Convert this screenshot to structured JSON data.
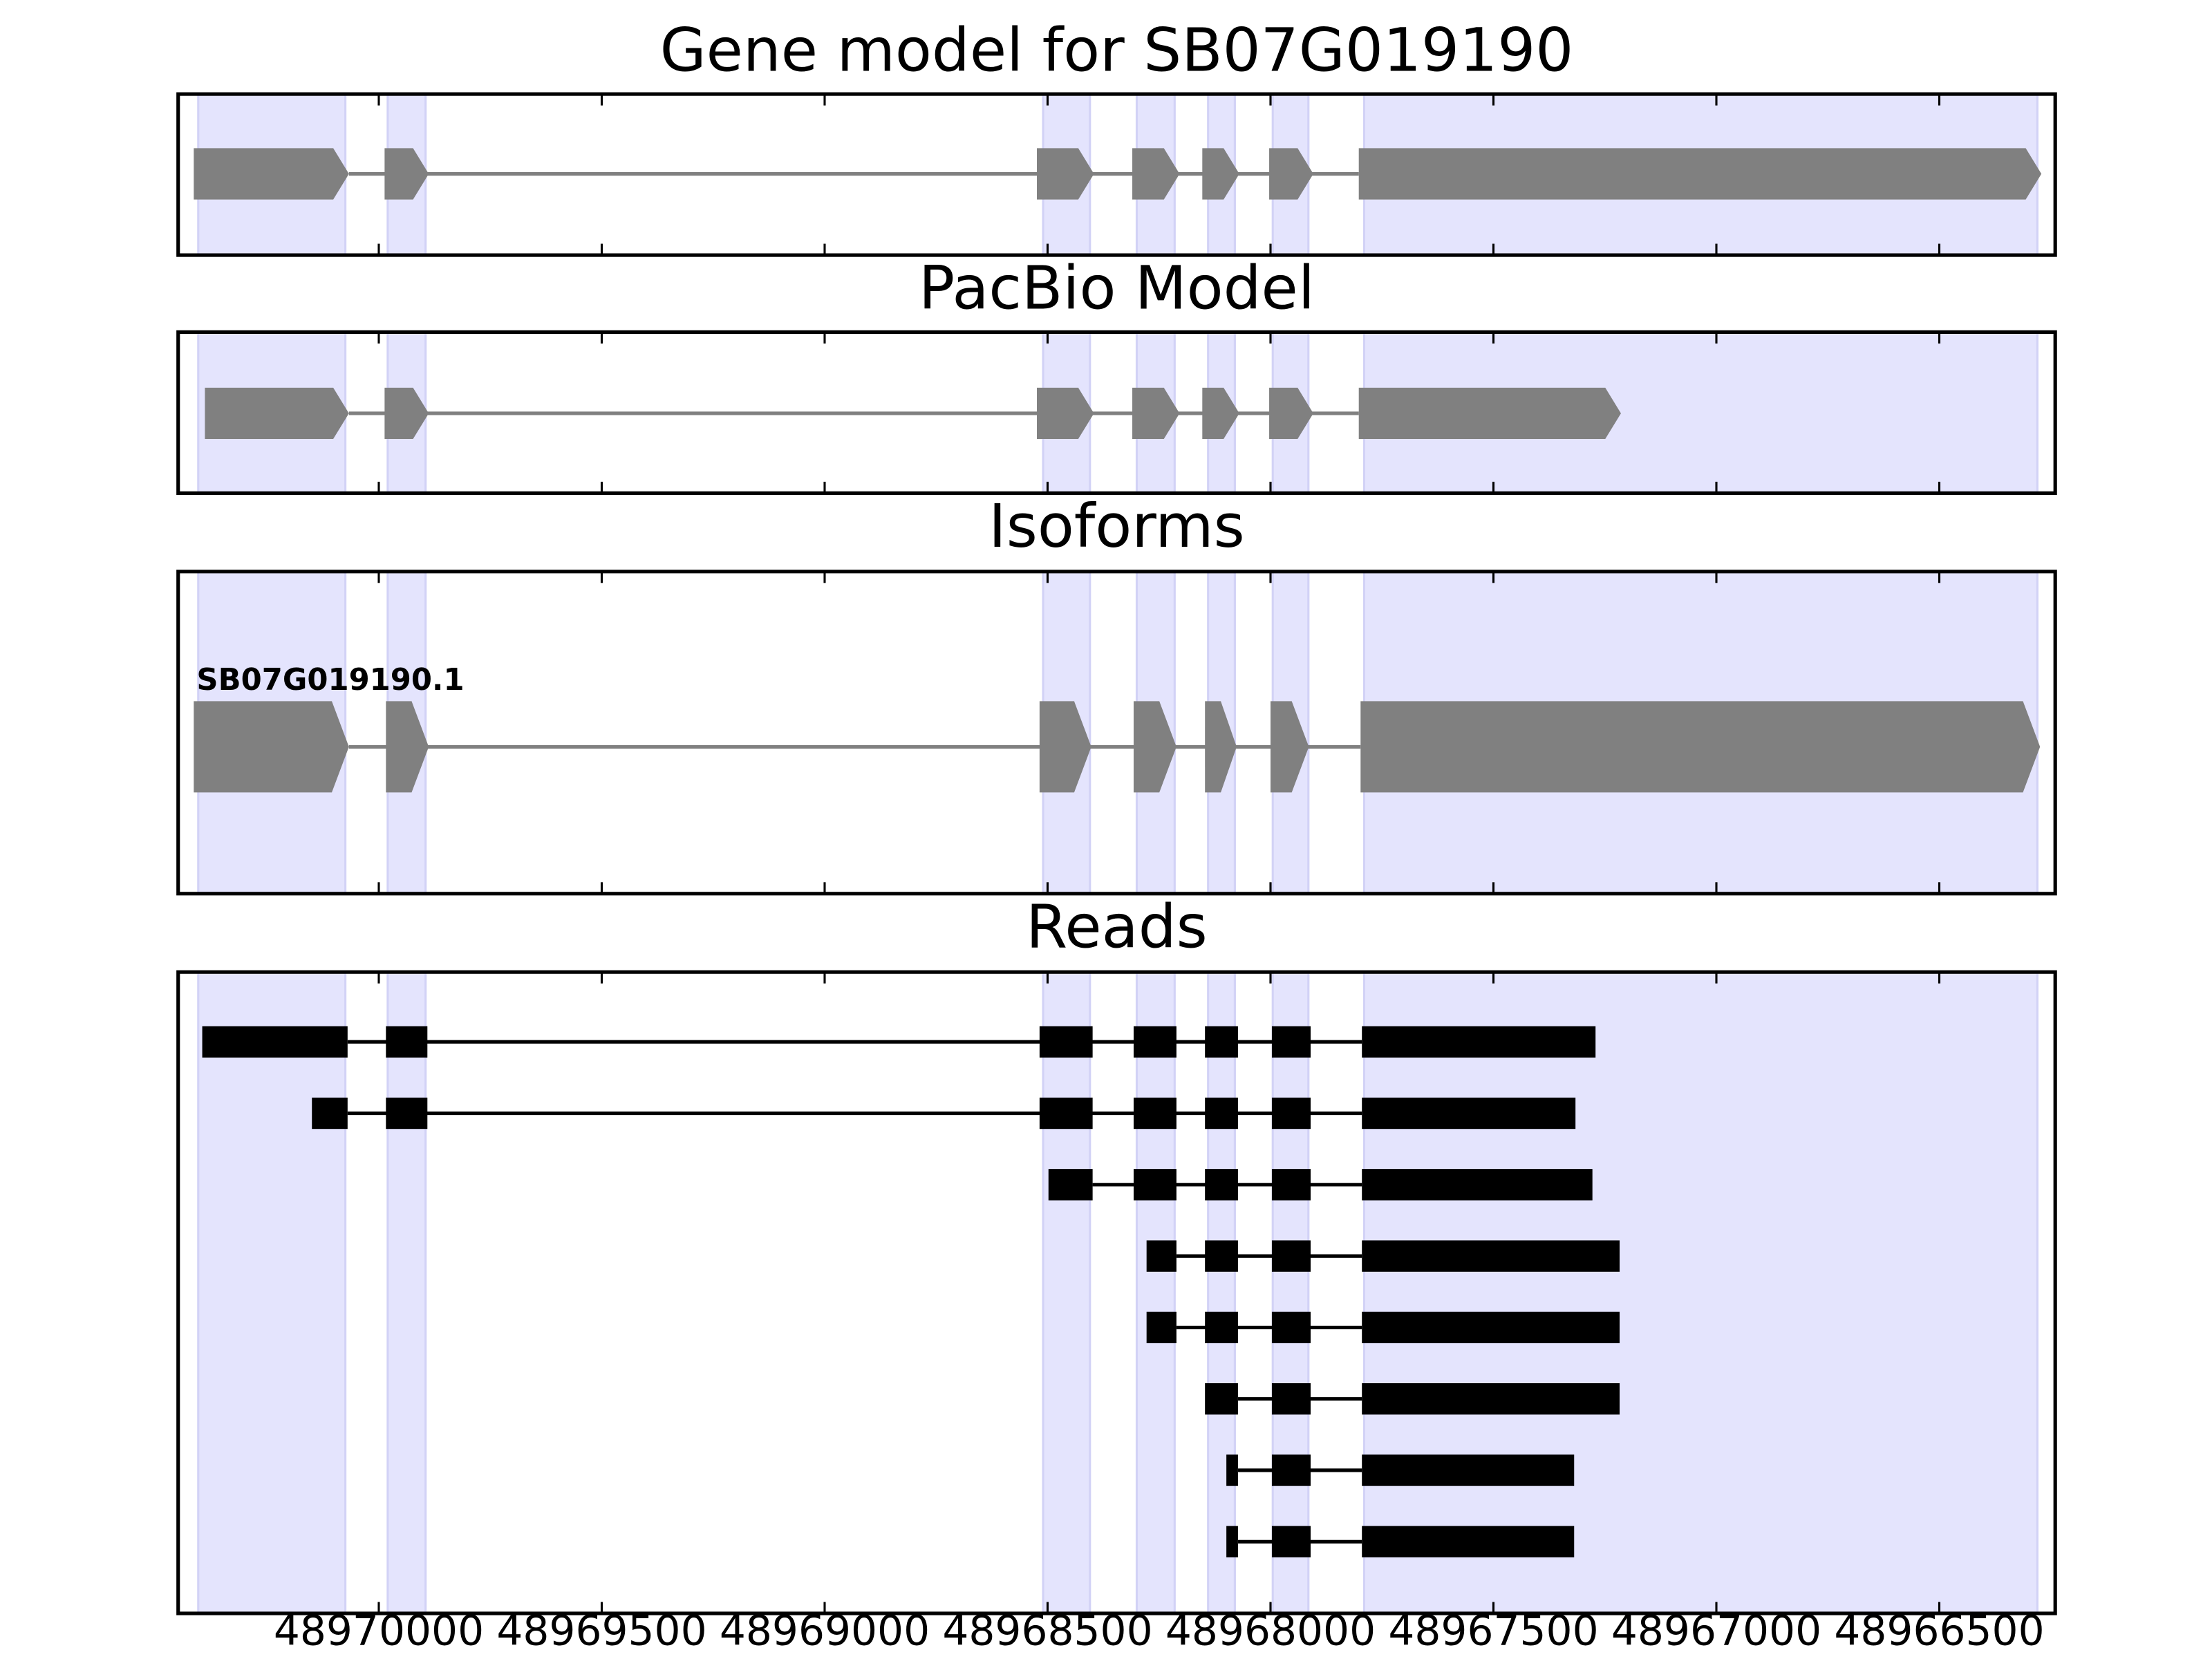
{
  "chart_data": {
    "type": "gene-tracks",
    "xlim": [
      48970450,
      48966240
    ],
    "xticks": [
      48970000,
      48969500,
      48969000,
      48968500,
      48968000,
      48967500,
      48967000,
      48966500
    ],
    "exon_regions": [
      [
        48970405,
        48970075
      ],
      [
        48969980,
        48969895
      ],
      [
        48968510,
        48968405
      ],
      [
        48968300,
        48968215
      ],
      [
        48968140,
        48968080
      ],
      [
        48967995,
        48967915
      ],
      [
        48967790,
        48966280
      ]
    ],
    "tracks": [
      {
        "title": "Gene model for SB07G019190",
        "color": "#808080",
        "features": [
          [
            48970415,
            48970067
          ],
          [
            48969987,
            48969888
          ],
          [
            48968524,
            48968396
          ],
          [
            48968310,
            48968204
          ],
          [
            48968153,
            48968070
          ],
          [
            48968003,
            48967904
          ],
          [
            48967802,
            48966271
          ]
        ]
      },
      {
        "title": "PacBio Model",
        "color": "#808080",
        "features": [
          [
            48970390,
            48970067
          ],
          [
            48969987,
            48969888
          ],
          [
            48968524,
            48968396
          ],
          [
            48968310,
            48968204
          ],
          [
            48968153,
            48968070
          ],
          [
            48968003,
            48967904
          ],
          [
            48967802,
            48967214
          ]
        ]
      },
      {
        "title": "Isoforms",
        "color": "#808080",
        "label": "SB07G019190.1",
        "features": [
          [
            48970415,
            48970067
          ],
          [
            48969984,
            48969888
          ],
          [
            48968518,
            48968402
          ],
          [
            48968307,
            48968211
          ],
          [
            48968147,
            48968076
          ],
          [
            48968000,
            48967914
          ],
          [
            48967798,
            48966274
          ]
        ]
      }
    ],
    "reads": {
      "title": "Reads",
      "color": "#000000",
      "rows": [
        [
          [
            48970396,
            48970070
          ],
          [
            48969984,
            48969891
          ],
          [
            48968518,
            48968399
          ],
          [
            48968307,
            48968211
          ],
          [
            48968147,
            48968073
          ],
          [
            48967997,
            48967910
          ],
          [
            48967795,
            48967271
          ]
        ],
        [
          [
            48970150,
            48970070
          ],
          [
            48969984,
            48969891
          ],
          [
            48968518,
            48968399
          ],
          [
            48968307,
            48968211
          ],
          [
            48968147,
            48968073
          ],
          [
            48967997,
            48967910
          ],
          [
            48967795,
            48967316
          ]
        ],
        [
          [
            48968498,
            48968399
          ],
          [
            48968307,
            48968211
          ],
          [
            48968147,
            48968073
          ],
          [
            48967997,
            48967910
          ],
          [
            48967795,
            48967278
          ]
        ],
        [
          [
            48968278,
            48968211
          ],
          [
            48968147,
            48968073
          ],
          [
            48967997,
            48967910
          ],
          [
            48967795,
            48967217
          ]
        ],
        [
          [
            48968278,
            48968211
          ],
          [
            48968147,
            48968073
          ],
          [
            48967997,
            48967910
          ],
          [
            48967795,
            48967217
          ]
        ],
        [
          [
            48968147,
            48968073
          ],
          [
            48967997,
            48967910
          ],
          [
            48967795,
            48967217
          ]
        ],
        [
          [
            48968099,
            48968073
          ],
          [
            48967997,
            48967910
          ],
          [
            48967795,
            48967319
          ]
        ],
        [
          [
            48968099,
            48968073
          ],
          [
            48967997,
            48967910
          ],
          [
            48967795,
            48967319
          ]
        ]
      ]
    }
  }
}
